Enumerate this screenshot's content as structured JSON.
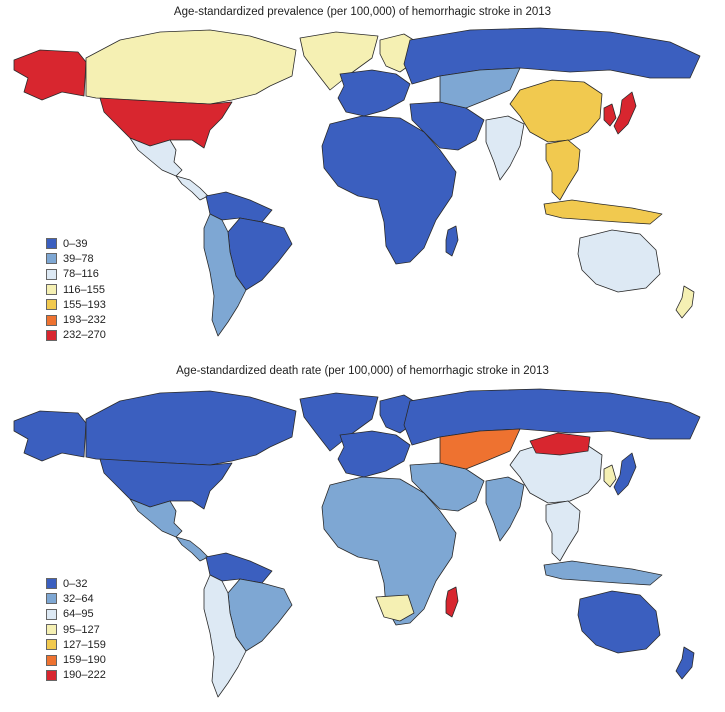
{
  "maps": [
    {
      "title": "Age-standardized prevalence (per 100,000) of hemorrhagic stroke in 2013",
      "legend": [
        {
          "label": "0–39",
          "color": "#3b5fbf"
        },
        {
          "label": "39–78",
          "color": "#7ea7d3"
        },
        {
          "label": "78–116",
          "color": "#dde9f4"
        },
        {
          "label": "116–155",
          "color": "#f5f0b3"
        },
        {
          "label": "155–193",
          "color": "#f1c94f"
        },
        {
          "label": "193–232",
          "color": "#ee7230"
        },
        {
          "label": "232–270",
          "color": "#d8262f"
        }
      ],
      "region_classes": {
        "greenland": 3,
        "canada": 3,
        "alaska": 6,
        "usa": 6,
        "mexico": 2,
        "central_america": 2,
        "south_america_north": 0,
        "brazil": 0,
        "south_america_south": 1,
        "europe_west": 0,
        "europe_north": 3,
        "russia": 0,
        "middle_east": 0,
        "africa": 0,
        "madagascar": 0,
        "central_asia": 1,
        "india": 2,
        "china": 4,
        "korea": 6,
        "japan": 6,
        "southeast_asia": 4,
        "indonesia": 4,
        "australia": 2,
        "new_zealand": 3
      }
    },
    {
      "title": "Age-standardized death rate (per 100,000) of hemorrhagic stroke in 2013",
      "legend": [
        {
          "label": "0–32",
          "color": "#3b5fbf"
        },
        {
          "label": "32–64",
          "color": "#7ea7d3"
        },
        {
          "label": "64–95",
          "color": "#dde9f4"
        },
        {
          "label": "95–127",
          "color": "#f5f0b3"
        },
        {
          "label": "127–159",
          "color": "#f1c94f"
        },
        {
          "label": "159–190",
          "color": "#ee7230"
        },
        {
          "label": "190–222",
          "color": "#d8262f"
        }
      ],
      "region_classes": {
        "greenland": 0,
        "canada": 0,
        "alaska": 0,
        "usa": 0,
        "mexico": 1,
        "central_america": 1,
        "south_america_north": 0,
        "brazil": 1,
        "south_america_south": 2,
        "europe_west": 0,
        "europe_north": 0,
        "russia": 0,
        "middle_east": 1,
        "africa": 1,
        "madagascar": 6,
        "central_asia": 5,
        "india": 1,
        "china": 2,
        "korea": 3,
        "japan": 0,
        "southeast_asia": 2,
        "indonesia": 1,
        "australia": 0,
        "new_zealand": 0,
        "mongolia": 6,
        "southern_africa_band": 3
      }
    }
  ]
}
